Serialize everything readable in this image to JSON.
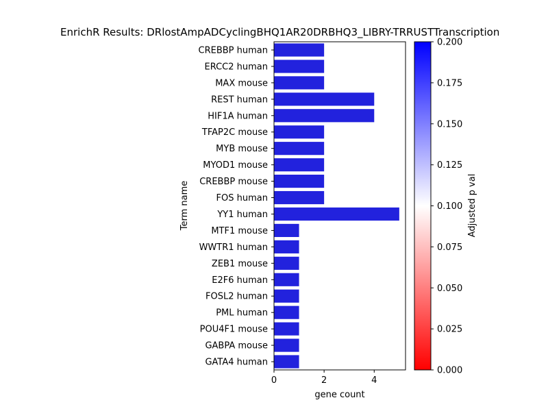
{
  "chart_data": {
    "type": "bar",
    "orientation": "horizontal",
    "title": "EnrichR Results: DRlostAmpADCyclingBHQ1AR20DRBHQ3_LIBRY-TRRUSTTranscription",
    "xlabel": "gene count",
    "ylabel": "Term name",
    "xlim": [
      0,
      5.25
    ],
    "xticks": [
      0,
      2,
      4
    ],
    "categories": [
      "CREBBP human",
      "ERCC2 human",
      "MAX mouse",
      "REST human",
      "HIF1A human",
      "TFAP2C mouse",
      "MYB mouse",
      "MYOD1 mouse",
      "CREBBP mouse",
      "FOS human",
      "YY1 human",
      "MTF1 mouse",
      "WWTR1 human",
      "ZEB1 mouse",
      "E2F6 human",
      "FOSL2 human",
      "PML human",
      "POU4F1 mouse",
      "GABPA mouse",
      "GATA4 human"
    ],
    "values": [
      2,
      2,
      2,
      4,
      4,
      2,
      2,
      2,
      2,
      2,
      5,
      1,
      1,
      1,
      1,
      1,
      1,
      1,
      1,
      1
    ],
    "bar_color": "#2222dd",
    "colorbar": {
      "label": "Adjusted p val",
      "range": [
        0,
        0.2
      ],
      "ticks": [
        "0.000",
        "0.025",
        "0.050",
        "0.075",
        "0.100",
        "0.125",
        "0.150",
        "0.175",
        "0.200"
      ],
      "colors": [
        "#ff0000",
        "#ffffff",
        "#0000ff"
      ]
    },
    "grid": false,
    "legend": "none"
  }
}
